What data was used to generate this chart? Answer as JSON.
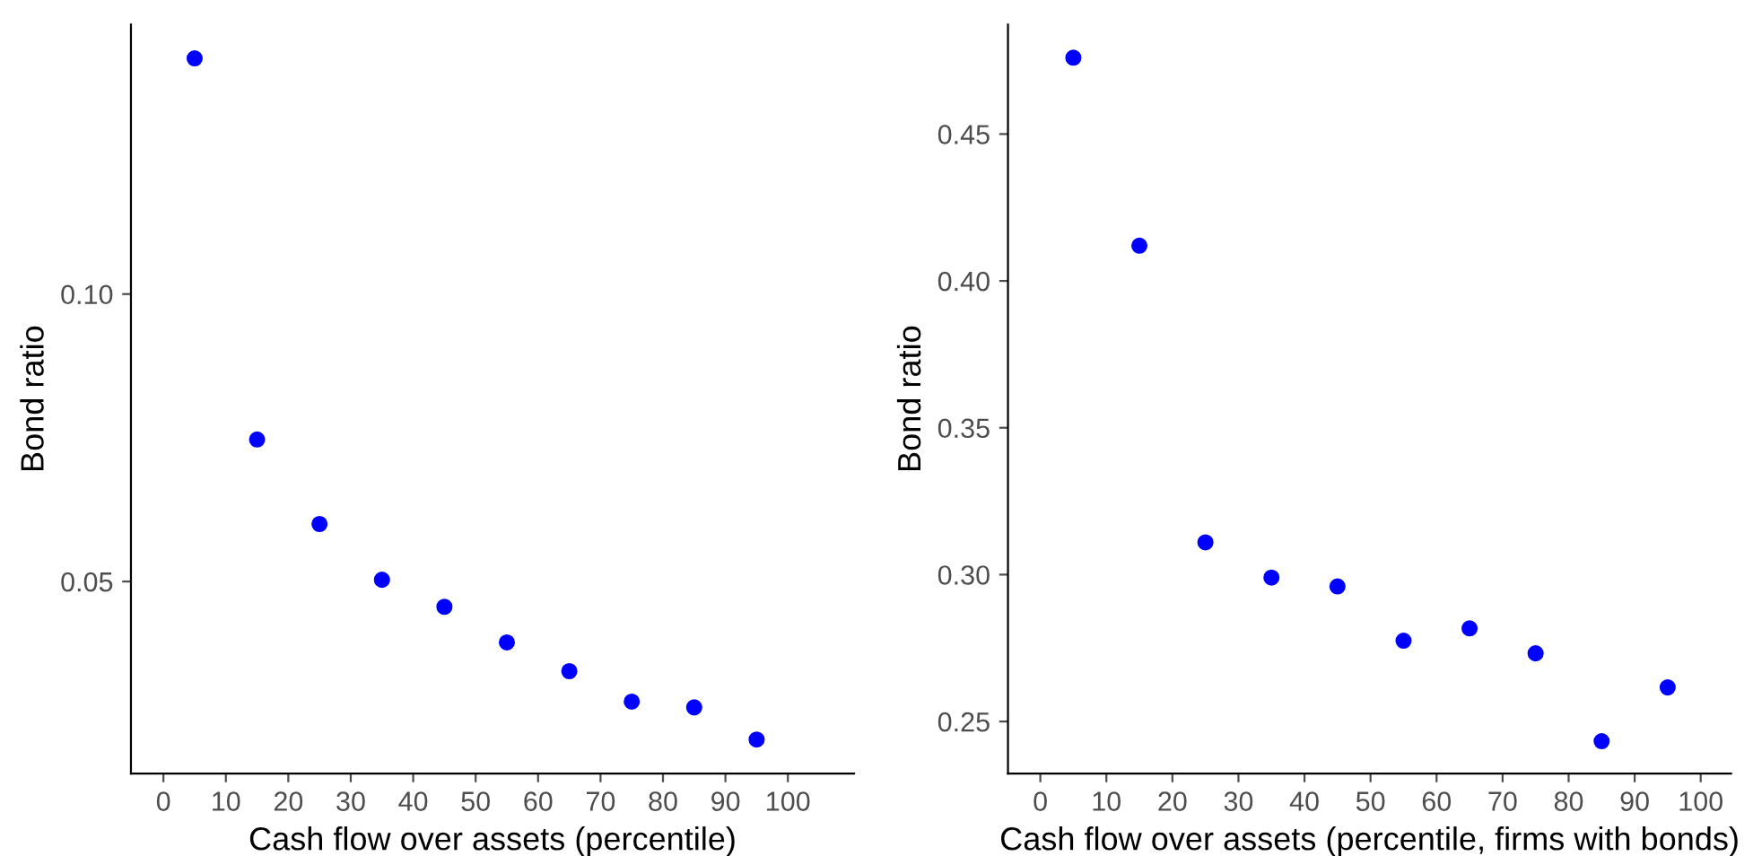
{
  "chart_data": [
    {
      "type": "scatter",
      "xlabel": "Cash flow over assets (percentile)",
      "ylabel": "Bond ratio",
      "marker": "circle",
      "grid": false,
      "legend": false,
      "x": [
        5,
        15,
        25,
        35,
        45,
        55,
        65,
        75,
        85,
        95
      ],
      "series": [
        {
          "color": "#0000ff",
          "values": [
            0.141,
            0.0747,
            0.06,
            0.0503,
            0.0456,
            0.0394,
            0.0344,
            0.0291,
            0.0281,
            0.0225
          ]
        }
      ],
      "xlim": [
        -5.2,
        110.6
      ],
      "xticks": [
        0,
        10,
        20,
        30,
        40,
        50,
        60,
        70,
        80,
        90,
        100
      ],
      "ylim": [
        0.0166,
        0.1469
      ],
      "yticks": [
        {
          "value": 0.05,
          "label": "0.05"
        },
        {
          "value": 0.1,
          "label": "0.10"
        }
      ]
    },
    {
      "type": "scatter",
      "xlabel": "Cash flow over assets (percentile, firms with bonds)",
      "ylabel": "Bond ratio",
      "marker": "circle",
      "grid": false,
      "legend": false,
      "x": [
        5,
        15,
        25,
        35,
        45,
        55,
        65,
        75,
        85,
        95
      ],
      "series": [
        {
          "color": "#0000ff",
          "values": [
            0.476,
            0.412,
            0.311,
            0.299,
            0.296,
            0.2775,
            0.2817,
            0.2732,
            0.2433,
            0.2616
          ]
        }
      ],
      "xlim": [
        -4.9,
        104.6
      ],
      "xticks": [
        0,
        10,
        20,
        30,
        40,
        50,
        60,
        70,
        80,
        90,
        100
      ],
      "ylim": [
        0.2323,
        0.4873
      ],
      "yticks": [
        {
          "value": 0.25,
          "label": "0.25"
        },
        {
          "value": 0.3,
          "label": "0.30"
        },
        {
          "value": 0.35,
          "label": "0.35"
        },
        {
          "value": 0.4,
          "label": "0.40"
        },
        {
          "value": 0.45,
          "label": "0.45"
        }
      ]
    }
  ]
}
